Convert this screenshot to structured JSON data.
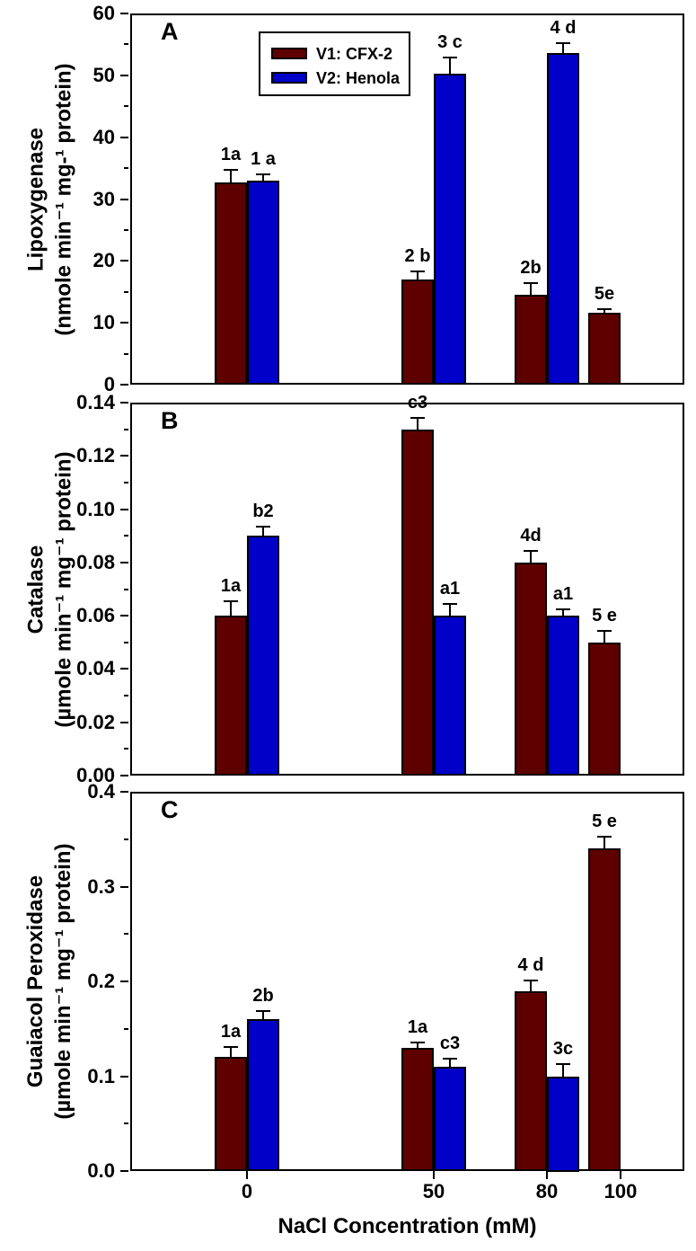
{
  "figure": {
    "xlabel": "NaCl Concentration (mM)",
    "background": "#FFFFFF",
    "axis_color": "#000000",
    "series_colors": {
      "v1": "#5F0000",
      "v2": "#0000C8"
    },
    "legend": {
      "items": [
        {
          "label": "V1: CFX-2",
          "color_key": "v1"
        },
        {
          "label": "V2: Henola",
          "color_key": "v2"
        }
      ]
    }
  },
  "chart_data": [
    {
      "type": "bar",
      "panel_letter": "A",
      "title": "Lipoxygenase",
      "ylabel_line1": "Lipoxygenase",
      "ylabel_line2": "(nmole min⁻¹ mg-¹ protein)",
      "xlabel": "NaCl Concentration (mM)",
      "ylim": [
        0,
        60
      ],
      "ytick_major": 10,
      "ytick_minor": 5,
      "ytick_decimals": 0,
      "grid": false,
      "legend_position": "upper-left-inside",
      "categories": [
        0,
        50,
        80,
        100
      ],
      "x_tick_labels_visible": false,
      "series": [
        {
          "name": "V1: CFX-2",
          "color_key": "v1",
          "values": [
            32.7,
            17.0,
            14.5,
            11.6
          ],
          "errors": [
            1.9,
            1.2,
            1.7,
            0.4
          ],
          "bar_labels": [
            "1a",
            "2 b",
            "2b",
            "5e"
          ]
        },
        {
          "name": "V2: Henola",
          "color_key": "v2",
          "values": [
            33.0,
            50.3,
            53.6,
            null
          ],
          "errors": [
            0.9,
            2.4,
            1.4,
            null
          ],
          "bar_labels": [
            "1 a",
            "3 c",
            "4 d",
            null
          ]
        }
      ]
    },
    {
      "type": "bar",
      "panel_letter": "B",
      "title": "Catalase",
      "ylabel_line1": "Catalase",
      "ylabel_line2": "(µmole min⁻¹ mg⁻¹ protein)",
      "ylim": [
        0,
        0.14
      ],
      "ytick_major": 0.02,
      "ytick_minor": 0.01,
      "ytick_decimals": 2,
      "grid": false,
      "categories": [
        0,
        50,
        80,
        100
      ],
      "x_tick_labels_visible": false,
      "series": [
        {
          "name": "V1: CFX-2",
          "color_key": "v1",
          "values": [
            0.06,
            0.13,
            0.08,
            0.05
          ],
          "errors": [
            0.005,
            0.004,
            0.004,
            0.004
          ],
          "bar_labels": [
            "1a",
            "c3",
            "4d",
            "5 e"
          ]
        },
        {
          "name": "V2: Henola",
          "color_key": "v2",
          "values": [
            0.09,
            0.06,
            0.06,
            null
          ],
          "errors": [
            0.003,
            0.004,
            0.002,
            null
          ],
          "bar_labels": [
            "b2",
            "a1",
            "a1",
            null
          ]
        }
      ]
    },
    {
      "type": "bar",
      "panel_letter": "C",
      "title": "Guaiacol Peroxidase",
      "ylabel_line1": "Guaiacol Peroxidase",
      "ylabel_line2": "(µmole min⁻¹ mg⁻¹ protein)",
      "ylim": [
        0,
        0.4
      ],
      "ytick_major": 0.1,
      "ytick_minor": 0.05,
      "ytick_decimals": 1,
      "grid": false,
      "categories": [
        0,
        50,
        80,
        100
      ],
      "x_tick_labels_visible": true,
      "series": [
        {
          "name": "V1: CFX-2",
          "color_key": "v1",
          "values": [
            0.12,
            0.13,
            0.19,
            0.34
          ],
          "errors": [
            0.01,
            0.005,
            0.01,
            0.012
          ],
          "bar_labels": [
            "1a",
            "1a",
            "4 d",
            "5 e"
          ]
        },
        {
          "name": "V2: Henola",
          "color_key": "v2",
          "values": [
            0.16,
            0.11,
            0.1,
            null
          ],
          "errors": [
            0.008,
            0.008,
            0.012,
            null
          ],
          "bar_labels": [
            "2b",
            "c3",
            "3c",
            null
          ]
        }
      ]
    }
  ]
}
